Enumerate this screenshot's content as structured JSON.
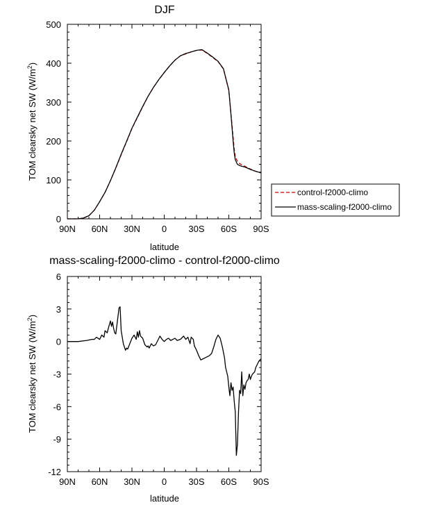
{
  "chart_data": [
    {
      "type": "line",
      "title": "DJF",
      "xlabel": "latitude",
      "ylabel": "TOM clearsky net SW (W/m",
      "ylabel_sup": "2",
      "ylabel_close": ")",
      "xlim": [
        90,
        -90
      ],
      "ylim": [
        0,
        500
      ],
      "x_tick_values": [
        90,
        60,
        30,
        0,
        -30,
        -60,
        -90
      ],
      "x_tick_labels": [
        "90N",
        "60N",
        "30N",
        "0",
        "30S",
        "60S",
        "90S"
      ],
      "y_tick_values": [
        0,
        100,
        200,
        300,
        400,
        500
      ],
      "y_tick_labels": [
        "0",
        "100",
        "200",
        "300",
        "400",
        "500"
      ],
      "legend_position": "right",
      "series": [
        {
          "name": "control-f2000-climo",
          "color": "#cc0000",
          "dash": "dashed",
          "x": [
            90,
            80,
            75,
            70,
            65,
            60,
            55,
            50,
            45,
            40,
            35,
            30,
            25,
            20,
            15,
            10,
            5,
            0,
            -5,
            -10,
            -15,
            -20,
            -25,
            -30,
            -35,
            -40,
            -45,
            -50,
            -55,
            -60,
            -62,
            -64,
            -65,
            -66,
            -68,
            -70,
            -72,
            -75,
            -80,
            -85,
            -90
          ],
          "y": [
            0,
            0,
            2,
            8,
            22,
            44,
            68,
            98,
            130,
            165,
            198,
            232,
            260,
            288,
            315,
            338,
            358,
            376,
            393,
            408,
            419,
            424,
            429,
            433,
            434,
            425,
            415,
            404,
            385,
            330,
            270,
            210,
            180,
            160,
            148,
            142,
            139,
            135,
            128,
            122,
            118
          ]
        },
        {
          "name": "mass-scaling-f2000-climo",
          "color": "#000000",
          "dash": "solid",
          "x": [
            90,
            80,
            75,
            70,
            65,
            60,
            55,
            50,
            45,
            40,
            35,
            30,
            25,
            20,
            15,
            10,
            5,
            0,
            -5,
            -10,
            -15,
            -20,
            -25,
            -30,
            -35,
            -40,
            -45,
            -50,
            -55,
            -60,
            -62,
            -64,
            -65,
            -66,
            -68,
            -70,
            -72,
            -75,
            -80,
            -85,
            -90
          ],
          "y": [
            0,
            0,
            2,
            8,
            22,
            44,
            68,
            98,
            131,
            166,
            199,
            233,
            261,
            289,
            315,
            338,
            358,
            376,
            393,
            408,
            419,
            425,
            429,
            433,
            435,
            426,
            416,
            405,
            386,
            331,
            268,
            200,
            170,
            152,
            140,
            137,
            135,
            133,
            127,
            122,
            118
          ]
        }
      ]
    },
    {
      "type": "line",
      "title": "mass-scaling-f2000-climo - control-f2000-climo",
      "xlabel": "latitude",
      "ylabel": "TOM clearsky net SW (W/m",
      "ylabel_sup": "2",
      "ylabel_close": ")",
      "xlim": [
        90,
        -90
      ],
      "ylim": [
        -12,
        6
      ],
      "x_tick_values": [
        90,
        60,
        30,
        0,
        -30,
        -60,
        -90
      ],
      "x_tick_labels": [
        "90N",
        "60N",
        "30N",
        "0",
        "30S",
        "60S",
        "90S"
      ],
      "y_tick_values": [
        -12,
        -9,
        -6,
        -3,
        0,
        3,
        6
      ],
      "y_tick_labels": [
        "-12",
        "-9",
        "-6",
        "-3",
        "0",
        "3",
        "6"
      ],
      "series": [
        {
          "color": "#000000",
          "dash": "solid",
          "x": [
            90,
            80,
            72,
            67,
            65,
            63,
            60,
            58,
            56,
            55,
            53,
            52,
            50,
            49,
            48,
            47,
            46,
            45,
            44,
            42,
            41,
            40,
            38,
            36,
            35,
            34,
            32,
            30,
            28,
            26,
            25,
            24,
            23,
            22,
            20,
            18,
            16,
            15,
            14,
            12,
            10,
            8,
            6,
            5,
            4,
            2,
            0,
            -2,
            -4,
            -6,
            -8,
            -10,
            -12,
            -15,
            -18,
            -20,
            -22,
            -24,
            -25,
            -27,
            -28,
            -30,
            -32,
            -34,
            -36,
            -38,
            -40,
            -42,
            -44,
            -46,
            -48,
            -50,
            -52,
            -54,
            -56,
            -57,
            -58,
            -59,
            -60,
            -61,
            -62,
            -63,
            -64,
            -65,
            -66,
            -67,
            -68,
            -69,
            -70,
            -71,
            -72,
            -73,
            -74,
            -75,
            -76,
            -77,
            -78,
            -79,
            -80,
            -81,
            -82,
            -83,
            -84,
            -85,
            -86,
            -87,
            -88,
            -89,
            -90
          ],
          "y": [
            0,
            0,
            0.1,
            0.2,
            0.2,
            0.4,
            0.2,
            0.6,
            0.4,
            1.0,
            0.8,
            1.2,
            1.9,
            1.4,
            1.8,
            1.2,
            0.8,
            0.7,
            1.5,
            3.1,
            3.2,
            1.0,
            -0.2,
            -0.8,
            -0.6,
            -0.7,
            -0.2,
            0.3,
            0.6,
            0.2,
            0.9,
            0.4,
            1.0,
            0.5,
            0.3,
            -0.3,
            -0.5,
            -0.4,
            -0.6,
            -0.2,
            -0.4,
            -0.3,
            0.1,
            0.3,
            0.5,
            0.2,
            0.0,
            0.2,
            0.3,
            0.1,
            0.2,
            0.3,
            0.1,
            0.2,
            0.5,
            0.2,
            0.4,
            -0.2,
            0.4,
            0.2,
            -0.4,
            -0.8,
            -1.3,
            -1.7,
            -1.6,
            -1.5,
            -1.4,
            -1.3,
            -1.1,
            -0.5,
            0.2,
            0.6,
            0.3,
            -0.5,
            -1.5,
            -2.4,
            -2.8,
            -3.2,
            -4.2,
            -5.0,
            -3.8,
            -4.5,
            -4.2,
            -5.5,
            -6.5,
            -10.5,
            -9.5,
            -6.5,
            -4.5,
            -4.8,
            -2.8,
            -5.0,
            -4.0,
            -4.4,
            -3.8,
            -3.6,
            -3.5,
            -3.0,
            -3.5,
            -3.2,
            -3.0,
            -2.9,
            -2.8,
            -2.4,
            -2.2,
            -2.0,
            -1.8,
            -1.7,
            -1.6
          ]
        }
      ]
    }
  ],
  "legend": {
    "entries": [
      "control-f2000-climo",
      "mass-scaling-f2000-climo"
    ]
  }
}
